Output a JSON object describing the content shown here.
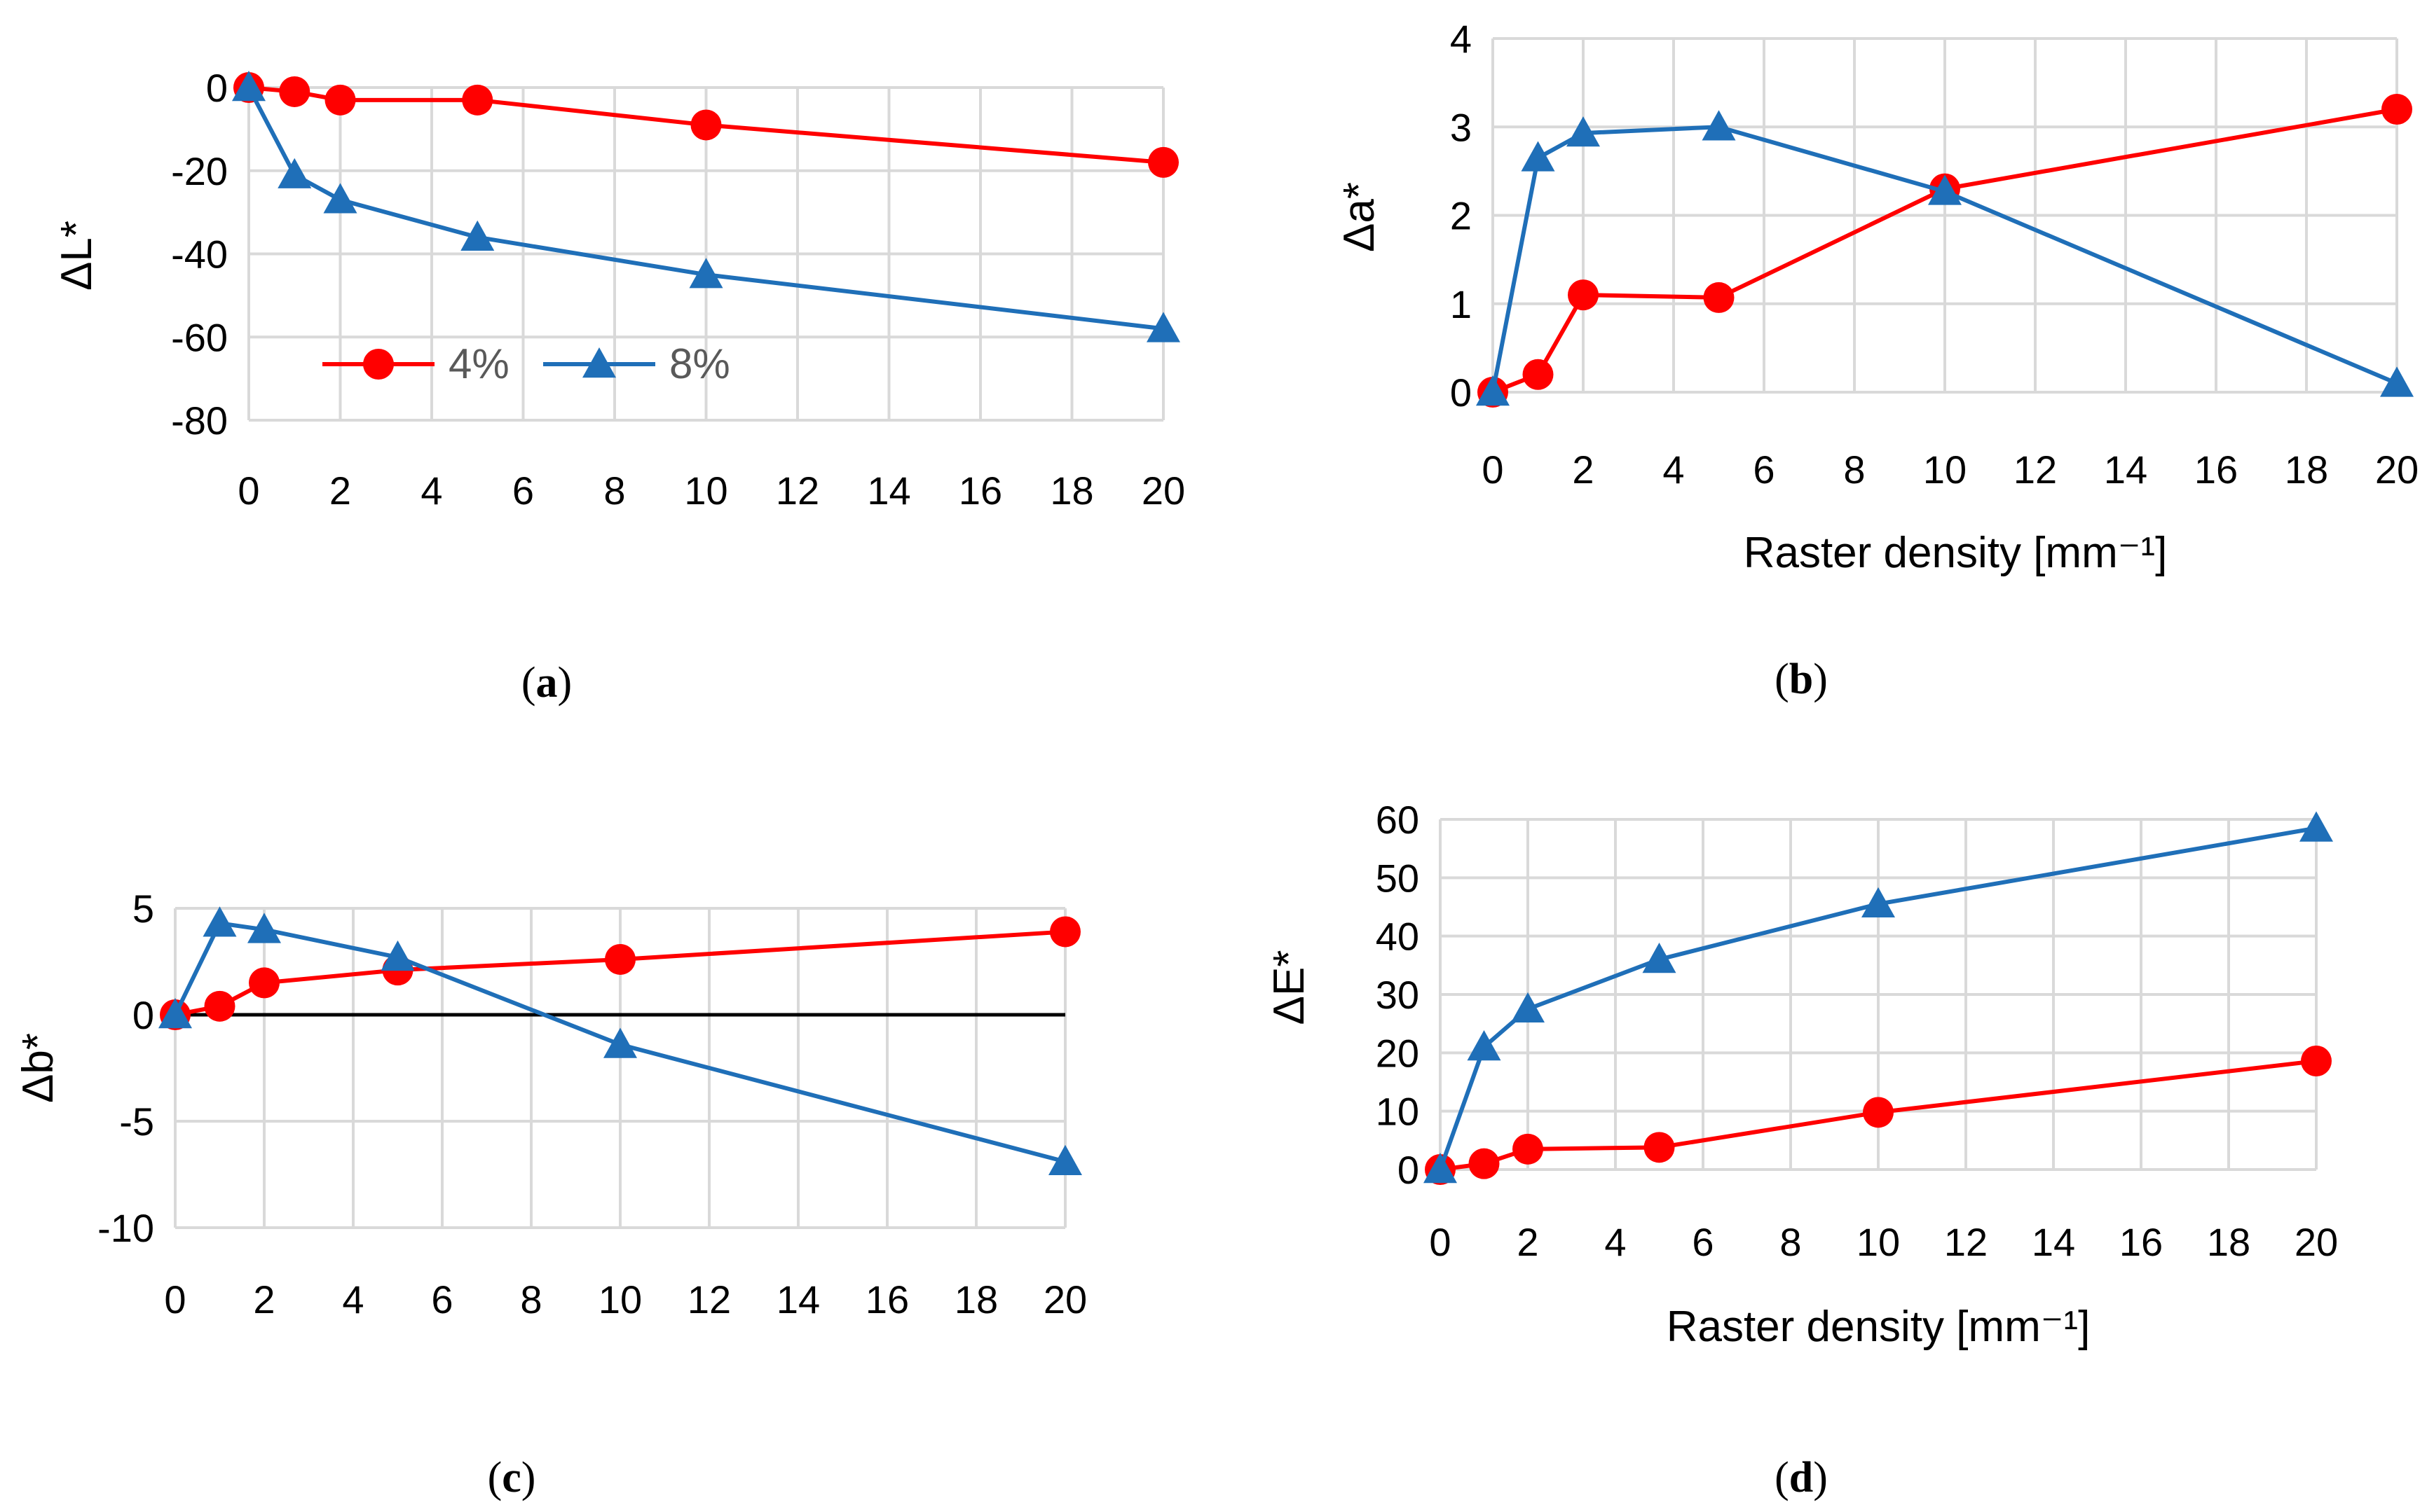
{
  "colors": {
    "series_4": "#ff0000",
    "series_8": "#1f6fb8",
    "grid": "#d9d9d9"
  },
  "chart_data": [
    {
      "id": "a",
      "type": "line",
      "caption": "a",
      "xlabel": "",
      "ylabel": "ΔL*",
      "xlim": [
        0,
        20
      ],
      "ylim": [
        -80,
        0
      ],
      "xticks": [
        0,
        2,
        4,
        6,
        8,
        10,
        12,
        14,
        16,
        18,
        20
      ],
      "yticks": [
        0,
        -20,
        -40,
        -60,
        -80
      ],
      "x": [
        0,
        1,
        2,
        5,
        10,
        20
      ],
      "series": [
        {
          "name": "4%",
          "marker": "circle",
          "values": [
            0,
            -1,
            -3,
            -3,
            -9,
            -18
          ]
        },
        {
          "name": "8%",
          "marker": "triangle",
          "values": [
            0,
            -21,
            -27,
            -36,
            -45,
            -58
          ]
        }
      ],
      "legend": {
        "position": "lower-left",
        "labels": [
          "4%",
          "8%"
        ]
      }
    },
    {
      "id": "b",
      "type": "line",
      "caption": "b",
      "xlabel": "Raster density [mm⁻¹]",
      "ylabel": "Δa*",
      "xlim": [
        0,
        20
      ],
      "ylim": [
        0,
        4
      ],
      "xticks": [
        0,
        2,
        4,
        6,
        8,
        10,
        12,
        14,
        16,
        18,
        20
      ],
      "yticks": [
        0,
        1,
        2,
        3,
        4
      ],
      "x": [
        0,
        1,
        2,
        5,
        10,
        20
      ],
      "series": [
        {
          "name": "4%",
          "marker": "circle",
          "values": [
            0,
            0.2,
            1.1,
            1.07,
            2.3,
            3.2
          ]
        },
        {
          "name": "8%",
          "marker": "triangle",
          "values": [
            0,
            2.65,
            2.93,
            3.0,
            2.27,
            0.1
          ]
        }
      ]
    },
    {
      "id": "c",
      "type": "line",
      "caption": "c",
      "xlabel": "",
      "ylabel": "Δb*",
      "xlim": [
        0,
        20
      ],
      "ylim": [
        -10,
        5
      ],
      "xticks": [
        0,
        2,
        4,
        6,
        8,
        10,
        12,
        14,
        16,
        18,
        20
      ],
      "yticks": [
        5,
        0,
        -5,
        -10
      ],
      "zero_line": true,
      "x": [
        0,
        1,
        2,
        5,
        10,
        20
      ],
      "series": [
        {
          "name": "4%",
          "marker": "circle",
          "values": [
            0,
            0.4,
            1.5,
            2.1,
            2.6,
            3.9
          ]
        },
        {
          "name": "8%",
          "marker": "triangle",
          "values": [
            0,
            4.3,
            4.0,
            2.7,
            -1.4,
            -6.9
          ]
        }
      ]
    },
    {
      "id": "d",
      "type": "line",
      "caption": "d",
      "xlabel": "Raster density [mm⁻¹]",
      "ylabel": "ΔE*",
      "xlim": [
        0,
        20
      ],
      "ylim": [
        0,
        60
      ],
      "xticks": [
        0,
        2,
        4,
        6,
        8,
        10,
        12,
        14,
        16,
        18,
        20
      ],
      "yticks": [
        0,
        10,
        20,
        30,
        40,
        50,
        60
      ],
      "x": [
        0,
        1,
        2,
        5,
        10,
        20
      ],
      "series": [
        {
          "name": "4%",
          "marker": "circle",
          "values": [
            0,
            1,
            3.5,
            3.8,
            9.8,
            18.6
          ]
        },
        {
          "name": "8%",
          "marker": "triangle",
          "values": [
            0,
            21,
            27.5,
            36,
            45.5,
            58.5
          ]
        }
      ]
    }
  ]
}
